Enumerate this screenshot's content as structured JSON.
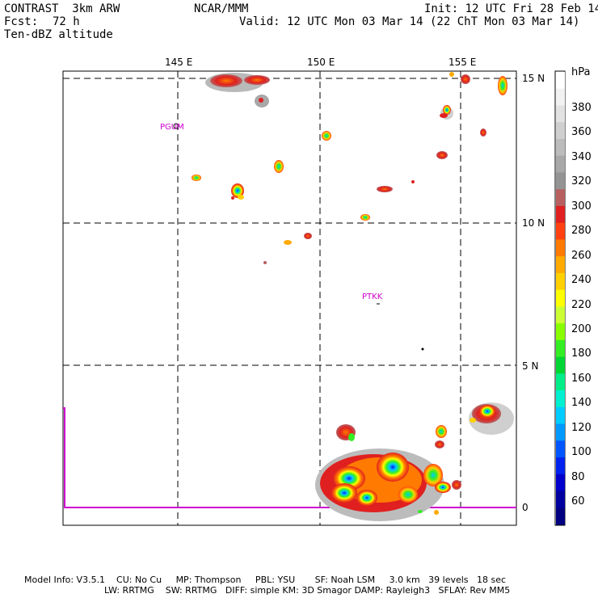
{
  "header": {
    "model": "CONTRAST  3km ARW",
    "org": "NCAR/MMM",
    "init": "Init: 12 UTC Fri 28 Feb 14",
    "fcst_label": "Fcst:",
    "fcst_value": "72 h",
    "valid": "Valid: 12 UTC Mon 03 Mar 14 (22 ChT Mon 03 Mar 14)",
    "field": "Ten-dBZ altitude"
  },
  "map": {
    "lon_labels": [
      "145 E",
      "150 E",
      "155 E"
    ],
    "lat_labels": [
      "15 N",
      "10 N",
      "5 N",
      "0"
    ],
    "stations": [
      "PGUM",
      "PTKK"
    ]
  },
  "colorbar": {
    "unit": "hPa",
    "labels": [
      "380",
      "360",
      "340",
      "320",
      "300",
      "280",
      "260",
      "240",
      "220",
      "200",
      "180",
      "160",
      "140",
      "120",
      "100",
      "80",
      "60"
    ],
    "colors": [
      "#ffffff",
      "#f2f2f2",
      "#e2e2e2",
      "#cfcfcf",
      "#bcbcbc",
      "#a8a8a8",
      "#949494",
      "#b86060",
      "#e02020",
      "#ff4010",
      "#ff7a00",
      "#ffaa00",
      "#ffd000",
      "#ffff00",
      "#ccff33",
      "#88ff00",
      "#33ee22",
      "#00d633",
      "#00ee88",
      "#00f0d0",
      "#00ccff",
      "#0099ff",
      "#0055ff",
      "#0022ee",
      "#0000cc",
      "#0000a0",
      "#000080"
    ]
  },
  "footer": {
    "line1": "Model Info: V3.5.1    CU: No Cu     MP: Thompson     PBL: YSU       SF: Noah LSM     3.0 km   39 levels   18 sec",
    "line2": "LW: RRTMG    SW: RRTMG   DIFF: simple KM: 3D Smagor DAMP: Rayleigh3   SFLAY: Rev MM5"
  }
}
